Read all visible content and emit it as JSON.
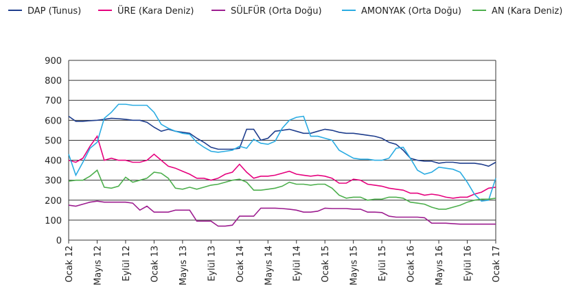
{
  "chart_data": {
    "type": "line",
    "categories": [
      "Ocak 12",
      null,
      null,
      null,
      "Mayıs 12",
      null,
      null,
      null,
      "Eylül 12",
      null,
      null,
      null,
      "Ocak 13",
      null,
      null,
      null,
      "Mayıs 13",
      null,
      null,
      null,
      "Eylül 13",
      null,
      null,
      null,
      "Ocak 14",
      null,
      null,
      null,
      "Mayıs 14",
      null,
      null,
      null,
      "Eylül 14",
      null,
      null,
      null,
      "Ocak 15",
      null,
      null,
      null,
      "Mayıs 15",
      null,
      null,
      null,
      "Eylül 15",
      null,
      null,
      null,
      "Ocak 16",
      null,
      null,
      null,
      "Mayıs 16",
      null,
      null,
      null,
      "Eylül 16",
      null,
      null,
      null,
      "Ocak 17"
    ],
    "series": [
      {
        "name": "DAP (Tunus)",
        "color": "#1d3c8c",
        "values": [
          620,
          595,
          595,
          598,
          600,
          605,
          610,
          608,
          605,
          600,
          600,
          590,
          565,
          545,
          555,
          545,
          540,
          535,
          510,
          490,
          465,
          455,
          455,
          455,
          460,
          555,
          555,
          500,
          510,
          545,
          550,
          555,
          545,
          535,
          535,
          545,
          555,
          550,
          540,
          535,
          535,
          530,
          525,
          520,
          510,
          490,
          480,
          450,
          410,
          400,
          395,
          395,
          385,
          390,
          390,
          385,
          385,
          385,
          380,
          370,
          390
        ]
      },
      {
        "name": "ÜRE (Kara Deniz)",
        "color": "#e5007d",
        "values": [
          400,
          390,
          410,
          470,
          520,
          400,
          410,
          400,
          400,
          390,
          390,
          400,
          430,
          400,
          370,
          360,
          345,
          330,
          310,
          310,
          300,
          310,
          330,
          340,
          380,
          340,
          310,
          320,
          320,
          325,
          335,
          345,
          330,
          325,
          320,
          325,
          320,
          310,
          285,
          285,
          305,
          300,
          280,
          275,
          270,
          260,
          255,
          250,
          235,
          235,
          225,
          230,
          225,
          215,
          210,
          215,
          215,
          230,
          240,
          260,
          265
        ]
      },
      {
        "name": "SÜLFÜR (Orta Doğu)",
        "color": "#9c1c8f",
        "values": [
          175,
          170,
          180,
          190,
          195,
          190,
          190,
          190,
          190,
          185,
          150,
          170,
          140,
          140,
          140,
          150,
          150,
          150,
          95,
          95,
          95,
          70,
          70,
          75,
          120,
          120,
          120,
          160,
          160,
          160,
          158,
          155,
          150,
          140,
          140,
          145,
          160,
          158,
          158,
          158,
          155,
          155,
          140,
          140,
          138,
          120,
          115,
          115,
          115,
          115,
          112,
          85,
          85,
          85,
          82,
          80,
          80,
          80,
          80,
          80,
          80
        ]
      },
      {
        "name": "AMONYAK (Orta Doğu)",
        "color": "#29abe2",
        "values": [
          430,
          325,
          390,
          460,
          490,
          610,
          640,
          680,
          680,
          675,
          675,
          675,
          640,
          580,
          560,
          545,
          535,
          530,
          490,
          465,
          445,
          440,
          445,
          450,
          470,
          460,
          505,
          485,
          480,
          495,
          560,
          600,
          615,
          620,
          520,
          520,
          510,
          500,
          450,
          430,
          410,
          405,
          405,
          400,
          400,
          410,
          460,
          465,
          410,
          350,
          330,
          340,
          365,
          360,
          355,
          340,
          290,
          230,
          195,
          200,
          310
        ]
      },
      {
        "name": "AN (Kara Deniz)",
        "color": "#4cae4c",
        "values": [
          295,
          300,
          300,
          320,
          350,
          265,
          260,
          270,
          315,
          290,
          300,
          310,
          340,
          335,
          310,
          260,
          255,
          265,
          255,
          265,
          275,
          280,
          290,
          300,
          305,
          290,
          250,
          250,
          255,
          260,
          270,
          290,
          280,
          280,
          275,
          280,
          280,
          260,
          225,
          210,
          215,
          215,
          200,
          205,
          205,
          215,
          215,
          210,
          190,
          185,
          180,
          165,
          155,
          155,
          165,
          175,
          190,
          200,
          205,
          205,
          210
        ]
      }
    ],
    "ylim": [
      0,
      900
    ],
    "yticks": [
      0,
      100,
      200,
      300,
      400,
      500,
      600,
      700,
      800,
      900
    ],
    "grid": true
  }
}
